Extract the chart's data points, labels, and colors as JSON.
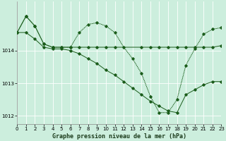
{
  "title": "Graphe pression niveau de la mer (hPa)",
  "bg_color": "#cceedd",
  "grid_color": "#ffffff",
  "line_color": "#1a5c1a",
  "series": [
    {
      "name": "line1_flat",
      "x": [
        0,
        1,
        2,
        3,
        4,
        5,
        6,
        7,
        8,
        9,
        10,
        11,
        14,
        15,
        16,
        17,
        18,
        19,
        20,
        21,
        22,
        23
      ],
      "y": [
        1014.55,
        1015.05,
        1014.75,
        1014.2,
        1014.1,
        1014.1,
        1014.1,
        1014.1,
        1014.1,
        1014.1,
        1014.1,
        1014.1,
        1014.1,
        1014.1,
        1014.1,
        1014.1,
        1014.1,
        1014.1,
        1014.1,
        1014.1,
        1014.1,
        1014.15
      ]
    },
    {
      "name": "line2_up_down",
      "x": [
        0,
        1,
        2,
        3,
        4,
        5,
        6,
        7,
        8,
        9,
        10,
        11,
        12,
        13,
        14,
        15,
        16,
        17,
        18,
        19,
        20,
        21,
        22,
        23
      ],
      "y": [
        1014.55,
        1015.05,
        1014.75,
        1014.2,
        1014.1,
        1014.1,
        1014.1,
        1014.55,
        1014.8,
        1014.85,
        1014.75,
        1014.55,
        1014.1,
        1013.75,
        1013.3,
        1012.6,
        1012.1,
        1012.1,
        1012.5,
        1013.55,
        1014.05,
        1014.5,
        1014.65,
        1014.7
      ]
    },
    {
      "name": "line3_declining",
      "x": [
        0,
        1,
        2,
        3,
        4,
        5,
        6,
        7,
        8,
        9,
        10,
        11,
        12,
        13,
        14,
        15,
        16,
        17,
        18,
        19,
        20,
        21,
        22,
        23
      ],
      "y": [
        1014.55,
        1014.55,
        1014.35,
        1014.1,
        1014.05,
        1014.05,
        1014.0,
        1013.9,
        1013.75,
        1013.6,
        1013.4,
        1013.25,
        1013.05,
        1012.85,
        1012.65,
        1012.45,
        1012.3,
        1012.15,
        1012.1,
        1012.65,
        1012.8,
        1012.95,
        1013.05,
        1013.05
      ]
    }
  ],
  "xlim": [
    0,
    23
  ],
  "ylim": [
    1011.75,
    1015.5
  ],
  "yticks": [
    1012,
    1013,
    1014
  ],
  "xticks": [
    0,
    1,
    2,
    3,
    4,
    5,
    6,
    7,
    8,
    9,
    10,
    11,
    12,
    13,
    14,
    15,
    16,
    17,
    18,
    19,
    20,
    21,
    22,
    23
  ],
  "tick_fontsize": 5.0,
  "title_fontsize": 6.0,
  "lw": 0.7,
  "ms": 1.8
}
